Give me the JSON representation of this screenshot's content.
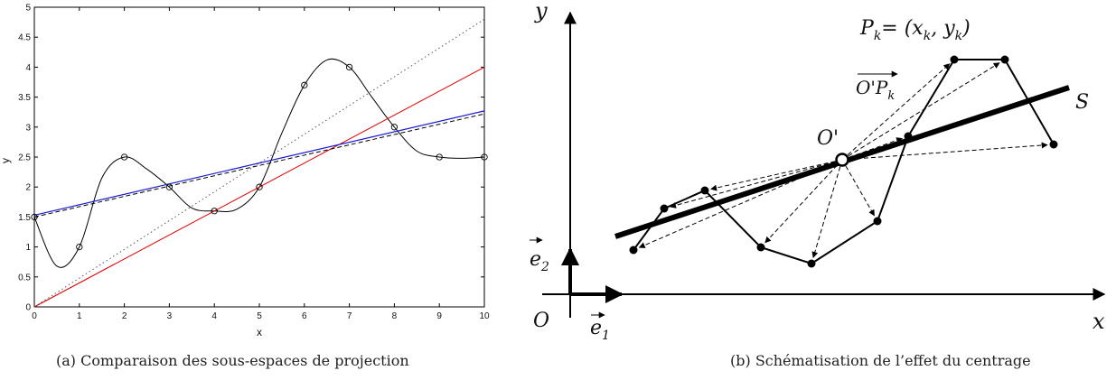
{
  "captions": {
    "a": "(a)  Comparaison des sous-espaces de projection",
    "b": "(b)  Schématisation de l’effet du centrage"
  },
  "chart_data": [
    {
      "type": "line",
      "xlabel": "x",
      "ylabel": "y",
      "xlim": [
        0,
        10
      ],
      "ylim": [
        0,
        5
      ],
      "xticks": [
        "0",
        "1",
        "2",
        "3",
        "4",
        "5",
        "6",
        "7",
        "8",
        "9",
        "10"
      ],
      "yticks": [
        "0",
        "0.5",
        "1",
        "1.5",
        "2",
        "2.5",
        "3",
        "3.5",
        "4",
        "4.5",
        "5"
      ],
      "grid": false,
      "points": {
        "x": [
          0,
          1,
          2,
          3,
          4,
          5,
          6,
          7,
          8,
          9,
          10
        ],
        "y": [
          1.5,
          1.0,
          2.5,
          2.0,
          1.6,
          2.0,
          3.7,
          4.0,
          3.0,
          2.5,
          2.5
        ]
      },
      "series": [
        {
          "style": "black-curve",
          "color": "#000000",
          "x": [
            0,
            0.5,
            1,
            1.5,
            2,
            2.5,
            3,
            3.5,
            4,
            4.5,
            5,
            5.5,
            6,
            6.5,
            7,
            7.5,
            8,
            8.5,
            9,
            9.5,
            10
          ],
          "y": [
            1.5,
            0.68,
            1.0,
            2.15,
            2.5,
            2.3,
            2.0,
            1.65,
            1.6,
            1.63,
            2.0,
            2.9,
            3.7,
            4.12,
            4.0,
            3.5,
            3.0,
            2.6,
            2.5,
            2.48,
            2.5
          ]
        },
        {
          "style": "red-solid",
          "color": "#e00000",
          "x": [
            0,
            10
          ],
          "y": [
            0,
            4.0
          ]
        },
        {
          "style": "dotted",
          "color": "#555555",
          "x": [
            0,
            10
          ],
          "y": [
            0,
            4.8
          ]
        },
        {
          "style": "blue-solid",
          "color": "#1a1ad0",
          "x": [
            0,
            10
          ],
          "y": [
            1.53,
            3.27
          ]
        },
        {
          "style": "black-dashed",
          "color": "#000000",
          "x": [
            0,
            10
          ],
          "y": [
            1.5,
            3.22
          ]
        }
      ]
    }
  ],
  "diagram": {
    "labels": {
      "y_axis": "y",
      "x_axis": "x",
      "origin": "O",
      "e1": "e",
      "e1_sub": "1",
      "e2": "e",
      "e2_sub": "2",
      "s_line": "S",
      "o_prime": "O'",
      "pk": "P",
      "pk_sub": "k",
      "pk_eq": "= (x",
      "pk_xsub": "k",
      "pk_comma": ", y",
      "pk_ysub": "k",
      "pk_close": ")",
      "vec": "O'P",
      "vec_sub": "k"
    }
  }
}
